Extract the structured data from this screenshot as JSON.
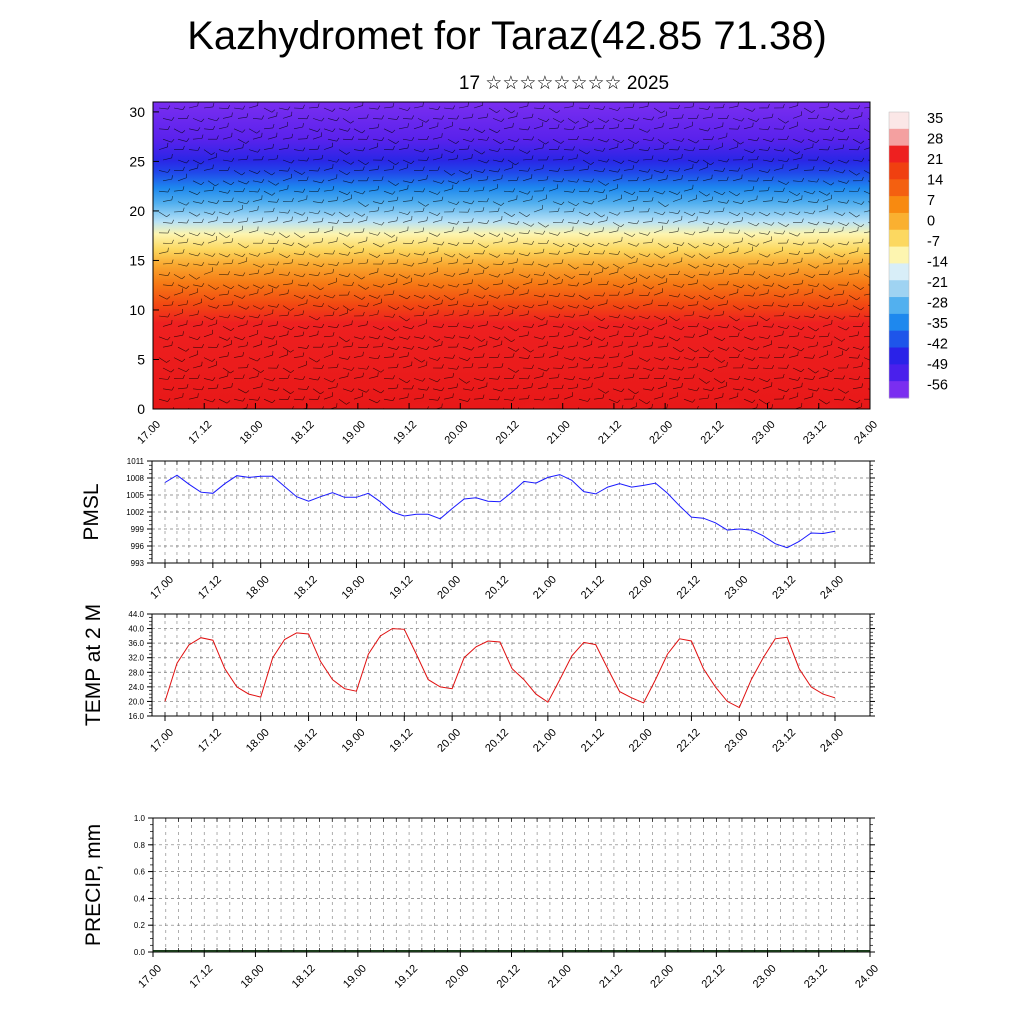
{
  "header": {
    "title": "Kazhydromet for Taraz(42.85 71.38)",
    "subtitle": "17 ☆☆☆☆☆☆☆☆ 2025"
  },
  "colors": {
    "pmsl_line": "#1a1aff",
    "temp_line": "#e01010",
    "grid": "#777777",
    "wind_barb": "#000000"
  },
  "chart_data": [
    {
      "id": "cross_section",
      "type": "heatmap",
      "x_ticks": [
        "17.00",
        "17.12",
        "18.00",
        "18.12",
        "19.00",
        "19.12",
        "20.00",
        "20.12",
        "21.00",
        "21.12",
        "22.00",
        "22.12",
        "23.00",
        "23.12",
        "24.00"
      ],
      "y_ticks": [
        0,
        5,
        10,
        15,
        20,
        25,
        30
      ],
      "ylim": [
        0,
        31
      ],
      "colorbar": {
        "labels": [
          "35",
          "28",
          "21",
          "14",
          "7",
          "0",
          "-7",
          "-14",
          "-21",
          "-28",
          "-35",
          "-42",
          "-49",
          "-56"
        ],
        "colors": [
          "#fbe7e7",
          "#f4a0a0",
          "#ee2020",
          "#f04010",
          "#f46010",
          "#f88a10",
          "#fab030",
          "#fcd860",
          "#fdf5b0",
          "#d8eef8",
          "#9fd3f2",
          "#52b0ef",
          "#1e88ee",
          "#1e55ea",
          "#2a22e8",
          "#4a20ec",
          "#7a2ef0"
        ]
      },
      "overlay": "wind barbs"
    },
    {
      "id": "pmsl",
      "type": "line",
      "ylabel": "PMSL",
      "y_ticks": [
        993,
        996,
        999,
        1002,
        1005,
        1008,
        1011
      ],
      "ylim": [
        993,
        1011
      ],
      "x_ticks": [
        "17.00",
        "17.12",
        "18.00",
        "18.12",
        "19.00",
        "19.12",
        "20.00",
        "20.12",
        "21.00",
        "21.12",
        "22.00",
        "22.12",
        "23.00",
        "23.12",
        "24.00"
      ],
      "x_hours": [
        0,
        3,
        6,
        9,
        12,
        15,
        18,
        21,
        24,
        27,
        30,
        33,
        36,
        39,
        42,
        45,
        48,
        51,
        54,
        57,
        60,
        63,
        66,
        69,
        72,
        75,
        78,
        81,
        84,
        87,
        90,
        93,
        96,
        99,
        102,
        105,
        108,
        111,
        114,
        117,
        120,
        123,
        126,
        129,
        132,
        135,
        138,
        141,
        144,
        147,
        150,
        153,
        156,
        159,
        162,
        165,
        168
      ],
      "values": [
        1007.2,
        1008.5,
        1006.9,
        1005.5,
        1005.3,
        1007.0,
        1008.4,
        1008.1,
        1008.3,
        1008.3,
        1006.5,
        1004.7,
        1003.9,
        1004.7,
        1005.4,
        1004.6,
        1004.6,
        1005.3,
        1003.8,
        1002.0,
        1001.3,
        1001.6,
        1001.6,
        1000.8,
        1002.6,
        1004.3,
        1004.5,
        1003.9,
        1003.8,
        1005.5,
        1007.4,
        1007.1,
        1008.1,
        1008.6,
        1007.6,
        1005.6,
        1005.2,
        1006.4,
        1007.0,
        1006.4,
        1006.7,
        1007.1,
        1005.3,
        1003.1,
        1001.1,
        1000.9,
        1000.1,
        998.8,
        999.0,
        998.8,
        997.8,
        996.4,
        995.7,
        996.8,
        998.3,
        998.2,
        998.6
      ]
    },
    {
      "id": "temp",
      "type": "line",
      "ylabel": "TEMP at 2 M",
      "y_ticks": [
        "16.0",
        "20.0",
        "24.0",
        "28.0",
        "32.0",
        "36.0",
        "40.0",
        "44.0"
      ],
      "ylim": [
        16,
        44
      ],
      "x_ticks": [
        "17.00",
        "17.12",
        "18.00",
        "18.12",
        "19.00",
        "19.12",
        "20.00",
        "20.12",
        "21.00",
        "21.12",
        "22.00",
        "22.12",
        "23.00",
        "23.12",
        "24.00"
      ],
      "x_hours": [
        0,
        3,
        6,
        9,
        12,
        15,
        18,
        21,
        24,
        27,
        30,
        33,
        36,
        39,
        42,
        45,
        48,
        51,
        54,
        57,
        60,
        63,
        66,
        69,
        72,
        75,
        78,
        81,
        84,
        87,
        90,
        93,
        96,
        99,
        102,
        105,
        108,
        111,
        114,
        117,
        120,
        123,
        126,
        129,
        132,
        135,
        138,
        141,
        144,
        147,
        150,
        153,
        156,
        159,
        162,
        165,
        168
      ],
      "values": [
        20.0,
        30.5,
        35.5,
        37.5,
        36.8,
        29.0,
        24.0,
        22.0,
        21.2,
        32.0,
        37.0,
        38.8,
        38.5,
        31.0,
        26.0,
        23.5,
        22.8,
        33.0,
        38.0,
        40.0,
        39.8,
        33.0,
        26.0,
        24.0,
        23.5,
        32.0,
        35.0,
        36.6,
        36.3,
        29.0,
        26.0,
        22.0,
        19.8,
        26.0,
        32.5,
        36.2,
        35.6,
        29.0,
        22.7,
        21.0,
        19.6,
        26.0,
        33.0,
        37.2,
        36.6,
        29.0,
        24.0,
        20.0,
        18.3,
        26.0,
        32.0,
        37.2,
        37.6,
        29.0,
        24.0,
        22.0,
        21.0
      ]
    },
    {
      "id": "precip",
      "type": "bar",
      "ylabel": "PRECIP, mm",
      "y_ticks": [
        "0.0",
        "0.2",
        "0.4",
        "0.6",
        "0.8",
        "1.0"
      ],
      "ylim": [
        0,
        1
      ],
      "x_ticks": [
        "17.00",
        "17.12",
        "18.00",
        "18.12",
        "19.00",
        "19.12",
        "20.00",
        "20.12",
        "21.00",
        "21.12",
        "22.00",
        "22.12",
        "23.00",
        "23.12",
        "24.00"
      ],
      "values": []
    }
  ]
}
